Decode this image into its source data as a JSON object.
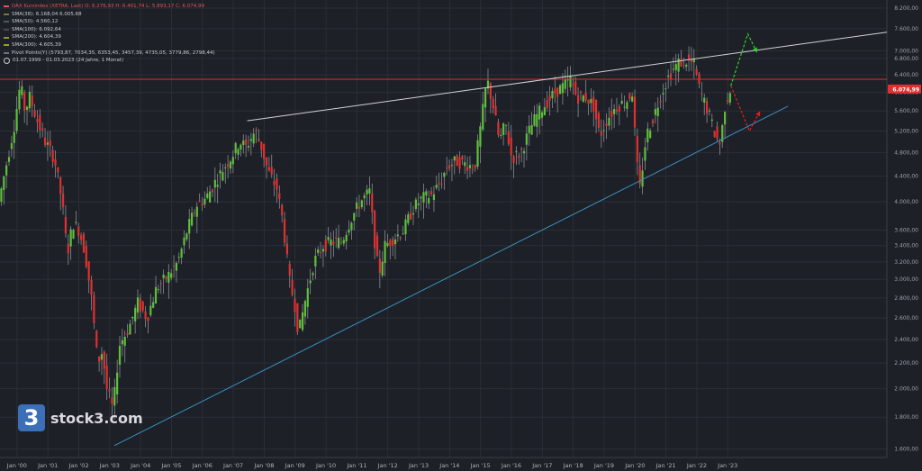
{
  "legend": {
    "title": "DAX Kursindex (XETRA, Last)  O: 6.276,93  H: 6.401,74  L: 5.893,17  C: 6.074,99",
    "lines": [
      {
        "label": "SMA(38): 6.168,04  6.005,68",
        "color": "#6b7f3a"
      },
      {
        "label": "SMA(50): 4.560,12",
        "color": "#3d5f6b"
      },
      {
        "label": "SMA(100): 6.092,64",
        "color": "#3f4a5e"
      },
      {
        "label": "SMA(200): 4.604,39",
        "color": "#8a9a2a"
      },
      {
        "label": "SMA(300): 4.605,39",
        "color": "#9aa02a"
      },
      {
        "label": "Pivot Points(Y) (5793,87, 7034,35, 6353,45, 3457,39, 4735,05, 3779,86, 2798,44)",
        "color": "#6e7480"
      }
    ],
    "range": "01.07.1999 - 01.03.2023  (24 Jahre, 1 Monat)"
  },
  "brand": {
    "logo": "3",
    "name": "stock3.com"
  },
  "last_price_label": "6.074,99",
  "colors": {
    "up": "#5fbf3c",
    "down": "#e03030",
    "resistance": "#e03030",
    "trend_top": "#d0d2d6",
    "trend_bottom": "#3a8fc0",
    "projection_up": "#2ed12e",
    "projection_down": "#e02020"
  },
  "chart_data": {
    "type": "candlestick",
    "title": "DAX Kursindex (XETRA, Last)",
    "scale": "log",
    "ylim": [
      1600,
      8200
    ],
    "y_ticks": [
      "8.200,00",
      "7.600,00",
      "7.000,00",
      "6.800,00",
      "6.400,00",
      "6.000,00",
      "5.600,00",
      "5.200,00",
      "4.800,00",
      "4.400,00",
      "4.000,00",
      "3.600,00",
      "3.400,00",
      "3.200,00",
      "3.000,00",
      "2.800,00",
      "2.600,00",
      "2.400,00",
      "2.200,00",
      "2.000,00",
      "1.800,00",
      "1.600,00"
    ],
    "y_tick_values": [
      8200,
      7600,
      7000,
      6800,
      6400,
      6000,
      5600,
      5200,
      4800,
      4400,
      4000,
      3600,
      3400,
      3200,
      3000,
      2800,
      2600,
      2400,
      2200,
      2000,
      1800,
      1600
    ],
    "x_ticks": [
      "Jan '00",
      "Jan '01",
      "Jan '02",
      "Jan '03",
      "Jan '04",
      "Jan '05",
      "Jan '06",
      "Jan '07",
      "Jan '08",
      "Jan '09",
      "Jan '10",
      "Jan '11",
      "Jan '12",
      "Jan '13",
      "Jan '14",
      "Jan '15",
      "Jan '16",
      "Jan '17",
      "Jan '18",
      "Jan '19",
      "Jan '20",
      "Jan '21",
      "Jan '22",
      "Jan '23"
    ],
    "x_tick_years": [
      2000,
      2001,
      2002,
      2003,
      2004,
      2005,
      2006,
      2007,
      2008,
      2009,
      2010,
      2011,
      2012,
      2013,
      2014,
      2015,
      2016,
      2017,
      2018,
      2019,
      2020,
      2021,
      2022,
      2023
    ],
    "x_range": [
      1999.5,
      2028.2
    ],
    "path_points": [
      [
        1999.5,
        4000
      ],
      [
        1999.75,
        4600
      ],
      [
        2000.0,
        5300
      ],
      [
        2000.2,
        6200
      ],
      [
        2000.35,
        5600
      ],
      [
        2000.5,
        5900
      ],
      [
        2000.75,
        5400
      ],
      [
        2001.0,
        5000
      ],
      [
        2001.3,
        4700
      ],
      [
        2001.55,
        4000
      ],
      [
        2001.72,
        3300
      ],
      [
        2001.9,
        3700
      ],
      [
        2002.1,
        3600
      ],
      [
        2002.3,
        3300
      ],
      [
        2002.5,
        2800
      ],
      [
        2002.7,
        2200
      ],
      [
        2002.85,
        2300
      ],
      [
        2003.0,
        2000
      ],
      [
        2003.2,
        1850
      ],
      [
        2003.4,
        2350
      ],
      [
        2003.7,
        2500
      ],
      [
        2004.0,
        2750
      ],
      [
        2004.3,
        2600
      ],
      [
        2004.6,
        2900
      ],
      [
        2005.0,
        3050
      ],
      [
        2005.3,
        3200
      ],
      [
        2005.6,
        3600
      ],
      [
        2005.9,
        3950
      ],
      [
        2006.2,
        4050
      ],
      [
        2006.5,
        4300
      ],
      [
        2006.8,
        4550
      ],
      [
        2007.0,
        4700
      ],
      [
        2007.3,
        5000
      ],
      [
        2007.5,
        4900
      ],
      [
        2007.8,
        5200
      ],
      [
        2008.0,
        4900
      ],
      [
        2008.2,
        4500
      ],
      [
        2008.5,
        4200
      ],
      [
        2008.7,
        3700
      ],
      [
        2008.9,
        3000
      ],
      [
        2009.1,
        2700
      ],
      [
        2009.2,
        2450
      ],
      [
        2009.4,
        2750
      ],
      [
        2009.7,
        3200
      ],
      [
        2010.0,
        3400
      ],
      [
        2010.3,
        3450
      ],
      [
        2010.6,
        3450
      ],
      [
        2010.9,
        3750
      ],
      [
        2011.2,
        4000
      ],
      [
        2011.5,
        4150
      ],
      [
        2011.65,
        3500
      ],
      [
        2011.8,
        3050
      ],
      [
        2012.0,
        3400
      ],
      [
        2012.3,
        3500
      ],
      [
        2012.6,
        3600
      ],
      [
        2012.9,
        3900
      ],
      [
        2013.2,
        4050
      ],
      [
        2013.5,
        4100
      ],
      [
        2013.8,
        4300
      ],
      [
        2014.0,
        4550
      ],
      [
        2014.3,
        4650
      ],
      [
        2014.6,
        4600
      ],
      [
        2014.9,
        4550
      ],
      [
        2015.1,
        5300
      ],
      [
        2015.3,
        6300
      ],
      [
        2015.5,
        5700
      ],
      [
        2015.7,
        5000
      ],
      [
        2015.9,
        5350
      ],
      [
        2016.1,
        4700
      ],
      [
        2016.4,
        4800
      ],
      [
        2016.7,
        5250
      ],
      [
        2016.9,
        5500
      ],
      [
        2017.2,
        5750
      ],
      [
        2017.5,
        6000
      ],
      [
        2017.8,
        6150
      ],
      [
        2018.0,
        6300
      ],
      [
        2018.2,
        5900
      ],
      [
        2018.5,
        5900
      ],
      [
        2018.75,
        5700
      ],
      [
        2018.95,
        5100
      ],
      [
        2019.2,
        5450
      ],
      [
        2019.5,
        5700
      ],
      [
        2019.8,
        5800
      ],
      [
        2020.0,
        6000
      ],
      [
        2020.15,
        4600
      ],
      [
        2020.25,
        4200
      ],
      [
        2020.45,
        5100
      ],
      [
        2020.7,
        5500
      ],
      [
        2020.95,
        6000
      ],
      [
        2021.2,
        6400
      ],
      [
        2021.5,
        6700
      ],
      [
        2021.8,
        6750
      ],
      [
        2022.0,
        6650
      ],
      [
        2022.2,
        6000
      ],
      [
        2022.45,
        5600
      ],
      [
        2022.7,
        5100
      ],
      [
        2022.85,
        4950
      ],
      [
        2023.0,
        5700
      ],
      [
        2023.15,
        6075
      ]
    ],
    "resistance_level": 6300,
    "trendline_top": [
      [
        2007.5,
        5400
      ],
      [
        2028.2,
        7500
      ]
    ],
    "trendline_bottom": [
      [
        2003.2,
        1620
      ],
      [
        2025.0,
        5700
      ]
    ],
    "projection_up": [
      [
        2023.15,
        6150
      ],
      [
        2023.7,
        7450
      ],
      [
        2024.0,
        6950
      ]
    ],
    "projection_down": [
      [
        2023.15,
        6150
      ],
      [
        2023.75,
        5200
      ],
      [
        2024.1,
        5600
      ]
    ]
  }
}
